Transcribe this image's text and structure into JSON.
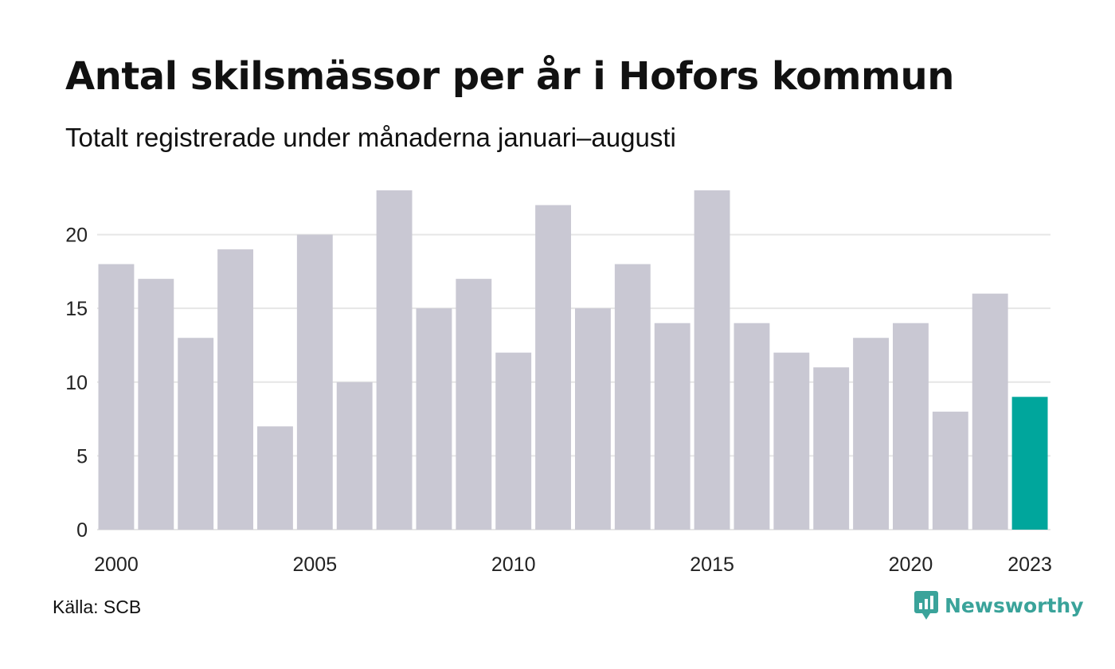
{
  "header": {
    "title": "Antal skilsmässor per år i Hofors kommun",
    "subtitle": "Totalt registrerade under månaderna januari–augusti"
  },
  "footer": {
    "source": "Källa: SCB",
    "brand": "Newsworthy",
    "brand_icon": "newsworthy-logo-icon"
  },
  "colors": {
    "bar": "#c9c8d3",
    "highlight": "#00a69c",
    "grid": "#e6e6e6",
    "brand": "#3aa39a"
  },
  "chart_data": {
    "type": "bar",
    "categories": [
      "2000",
      "2001",
      "2002",
      "2003",
      "2004",
      "2005",
      "2006",
      "2007",
      "2008",
      "2009",
      "2010",
      "2011",
      "2012",
      "2013",
      "2014",
      "2015",
      "2016",
      "2017",
      "2018",
      "2019",
      "2020",
      "2021",
      "2022",
      "2023"
    ],
    "values": [
      18,
      17,
      13,
      19,
      7,
      20,
      10,
      23,
      15,
      17,
      12,
      22,
      15,
      18,
      14,
      23,
      14,
      12,
      11,
      13,
      14,
      8,
      16,
      9
    ],
    "highlight_category": "2023",
    "x_tick_labels": [
      "2000",
      "2005",
      "2010",
      "2015",
      "2020",
      "2023"
    ],
    "y_ticks": [
      0,
      5,
      10,
      15,
      20
    ],
    "ylim": [
      0,
      23
    ],
    "grid": "horizontal",
    "title": "Antal skilsmässor per år i Hofors kommun",
    "xlabel": "",
    "ylabel": ""
  }
}
